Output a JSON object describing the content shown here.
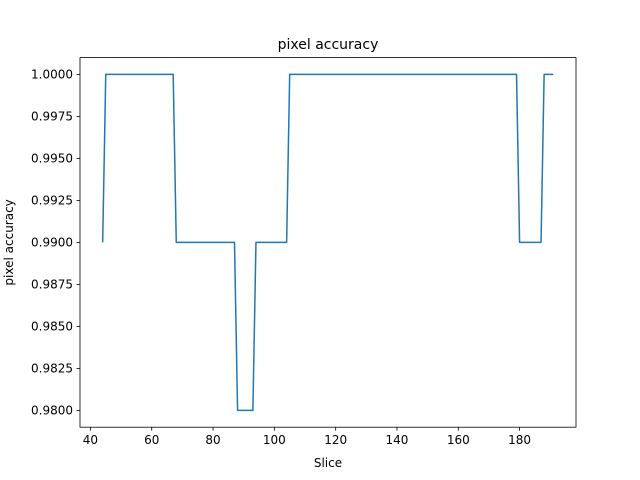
{
  "chart_data": {
    "type": "line",
    "title": "pixel accuracy",
    "xlabel": "Slice",
    "ylabel": "pixel accuracy",
    "xlim": [
      36.6,
      198.4
    ],
    "ylim": [
      0.979,
      1.001
    ],
    "xticks": [
      40,
      60,
      80,
      100,
      120,
      140,
      160,
      180
    ],
    "yticks": [
      0.98,
      0.9825,
      0.985,
      0.9875,
      0.99,
      0.9925,
      0.995,
      0.9975,
      1.0
    ],
    "xtick_labels": [
      "40",
      "60",
      "80",
      "100",
      "120",
      "140",
      "160",
      "180"
    ],
    "ytick_labels": [
      "0.9800",
      "0.9825",
      "0.9850",
      "0.9875",
      "0.9900",
      "0.9925",
      "0.9950",
      "0.9975",
      "1.0000"
    ],
    "grid": false,
    "series": [
      {
        "color": "#1f77b4",
        "x": [
          44,
          45,
          67,
          68,
          87,
          88,
          93,
          94,
          104,
          105,
          179,
          180,
          187,
          188,
          191
        ],
        "y": [
          0.99,
          1.0,
          1.0,
          0.99,
          0.99,
          0.98,
          0.98,
          0.99,
          0.99,
          1.0,
          1.0,
          0.99,
          0.99,
          1.0,
          1.0
        ]
      }
    ]
  }
}
